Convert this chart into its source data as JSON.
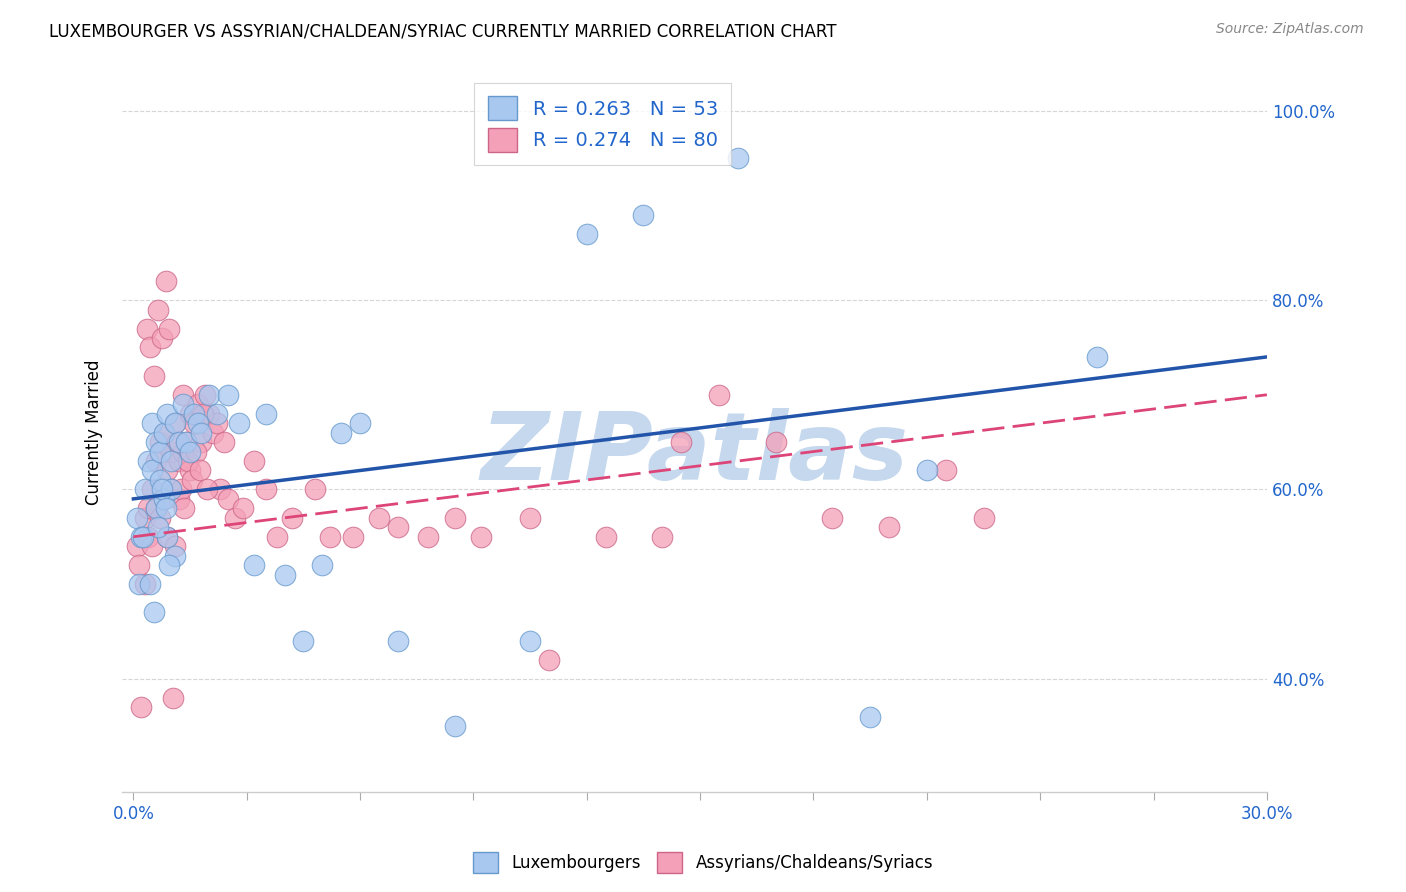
{
  "title": "LUXEMBOURGER VS ASSYRIAN/CHALDEAN/SYRIAC CURRENTLY MARRIED CORRELATION CHART",
  "source": "Source: ZipAtlas.com",
  "ylabel": "Currently Married",
  "xlim": [
    -0.3,
    30.0
  ],
  "ylim": [
    28.0,
    104.0
  ],
  "xlabel_vals": [
    0.0,
    3.0,
    6.0,
    9.0,
    12.0,
    15.0,
    18.0,
    21.0,
    24.0,
    27.0,
    30.0
  ],
  "ylabel_vals": [
    40.0,
    60.0,
    80.0,
    100.0
  ],
  "blue_R": 0.263,
  "blue_N": 53,
  "pink_R": 0.274,
  "pink_N": 80,
  "blue_color": "#A8C8F0",
  "pink_color": "#F4A0B8",
  "blue_edge_color": "#6699CC",
  "pink_edge_color": "#CC6688",
  "blue_line_color": "#2255AA",
  "pink_line_color": "#DD4477",
  "watermark": "ZIPatlas",
  "watermark_color": "#C5D8EE",
  "blue_scatter_x": [
    0.1,
    0.2,
    0.3,
    0.4,
    0.5,
    0.5,
    0.6,
    0.6,
    0.7,
    0.7,
    0.8,
    0.8,
    0.9,
    0.9,
    1.0,
    1.0,
    1.1,
    1.1,
    1.2,
    1.3,
    1.4,
    1.5,
    1.6,
    1.7,
    1.8,
    2.0,
    2.2,
    2.5,
    2.8,
    3.2,
    3.5,
    4.0,
    4.5,
    5.0,
    5.5,
    6.0,
    7.0,
    8.5,
    10.5,
    12.0,
    13.5,
    16.0,
    19.5,
    21.0,
    25.5,
    0.15,
    0.25,
    0.45,
    0.55,
    0.65,
    0.75,
    0.85,
    0.95
  ],
  "blue_scatter_y": [
    57,
    55,
    60,
    63,
    62,
    67,
    58,
    65,
    61,
    64,
    66,
    59,
    68,
    55,
    63,
    60,
    67,
    53,
    65,
    69,
    65,
    64,
    68,
    67,
    66,
    70,
    68,
    70,
    67,
    52,
    68,
    51,
    44,
    52,
    66,
    67,
    44,
    35,
    44,
    87,
    89,
    95,
    36,
    62,
    74,
    50,
    55,
    50,
    47,
    56,
    60,
    58,
    52
  ],
  "pink_scatter_x": [
    0.1,
    0.15,
    0.2,
    0.3,
    0.3,
    0.4,
    0.4,
    0.5,
    0.5,
    0.6,
    0.6,
    0.7,
    0.7,
    0.8,
    0.8,
    0.9,
    0.9,
    1.0,
    1.0,
    1.1,
    1.1,
    1.2,
    1.2,
    1.3,
    1.3,
    1.4,
    1.5,
    1.5,
    1.6,
    1.7,
    1.8,
    1.9,
    2.0,
    2.1,
    2.2,
    2.3,
    2.4,
    2.5,
    2.7,
    2.9,
    3.2,
    3.5,
    3.8,
    4.2,
    4.8,
    5.2,
    5.8,
    6.5,
    7.0,
    7.8,
    8.5,
    9.2,
    10.5,
    11.0,
    12.5,
    14.0,
    14.5,
    15.5,
    17.0,
    18.5,
    20.0,
    21.5,
    22.5,
    0.35,
    0.45,
    0.55,
    0.65,
    0.75,
    0.85,
    0.95,
    1.05,
    1.15,
    1.25,
    1.35,
    1.45,
    1.55,
    1.65,
    1.75,
    1.85,
    1.95
  ],
  "pink_scatter_y": [
    54,
    52,
    37,
    57,
    50,
    55,
    58,
    60,
    54,
    63,
    58,
    65,
    57,
    66,
    59,
    62,
    55,
    64,
    60,
    67,
    54,
    63,
    59,
    70,
    64,
    65,
    68,
    62,
    67,
    69,
    65,
    70,
    68,
    66,
    67,
    60,
    65,
    59,
    57,
    58,
    63,
    60,
    55,
    57,
    60,
    55,
    55,
    57,
    56,
    55,
    57,
    55,
    57,
    42,
    55,
    55,
    65,
    70,
    65,
    57,
    56,
    62,
    57,
    77,
    75,
    72,
    79,
    76,
    82,
    77,
    38,
    65,
    60,
    58,
    63,
    61,
    64,
    62,
    68,
    60
  ]
}
